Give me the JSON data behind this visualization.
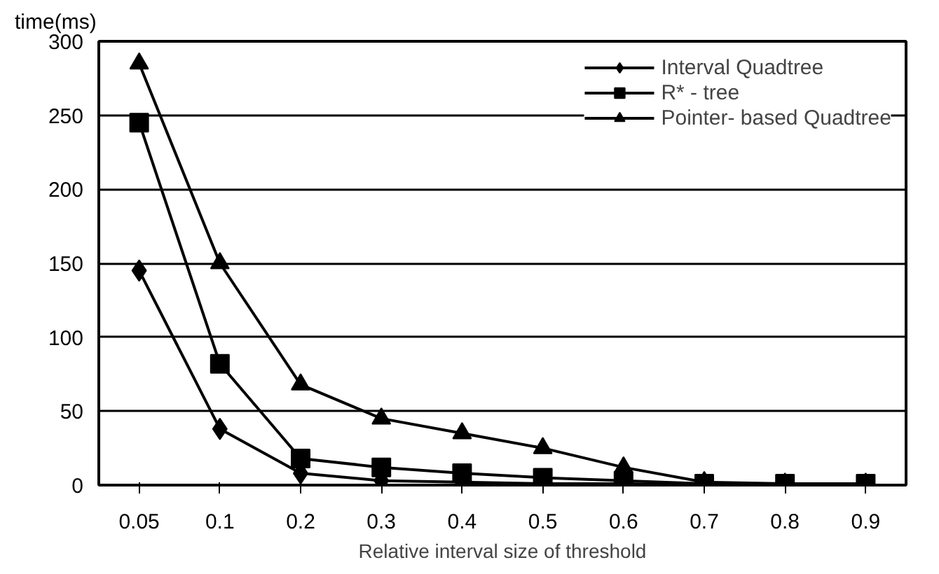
{
  "chart_data": {
    "type": "line",
    "xlabel": "Relative interval size of threshold",
    "ylabel": "time(ms)",
    "categories": [
      "0.05",
      "0.1",
      "0.2",
      "0.3",
      "0.4",
      "0.5",
      "0.6",
      "0.7",
      "0.8",
      "0.9"
    ],
    "series": [
      {
        "name": "Interval Quadtree",
        "color": "#000000",
        "marker": "diamond",
        "values": [
          145,
          38,
          8,
          3,
          2,
          1,
          1,
          0,
          0,
          0
        ]
      },
      {
        "name": "R* - tree",
        "color": "#000000",
        "marker": "square",
        "values": [
          245,
          82,
          18,
          12,
          8,
          5,
          3,
          1,
          1,
          1
        ]
      },
      {
        "name": "Pointer- based Quadtree",
        "color": "#000000",
        "marker": "triangle",
        "values": [
          285,
          150,
          68,
          45,
          35,
          25,
          12,
          2,
          1,
          1
        ]
      }
    ],
    "ylim": [
      0,
      300
    ],
    "yticks": [
      0,
      50,
      100,
      150,
      200,
      250,
      300
    ],
    "grid": "y",
    "legend": "top right",
    "line_style": "solid"
  }
}
